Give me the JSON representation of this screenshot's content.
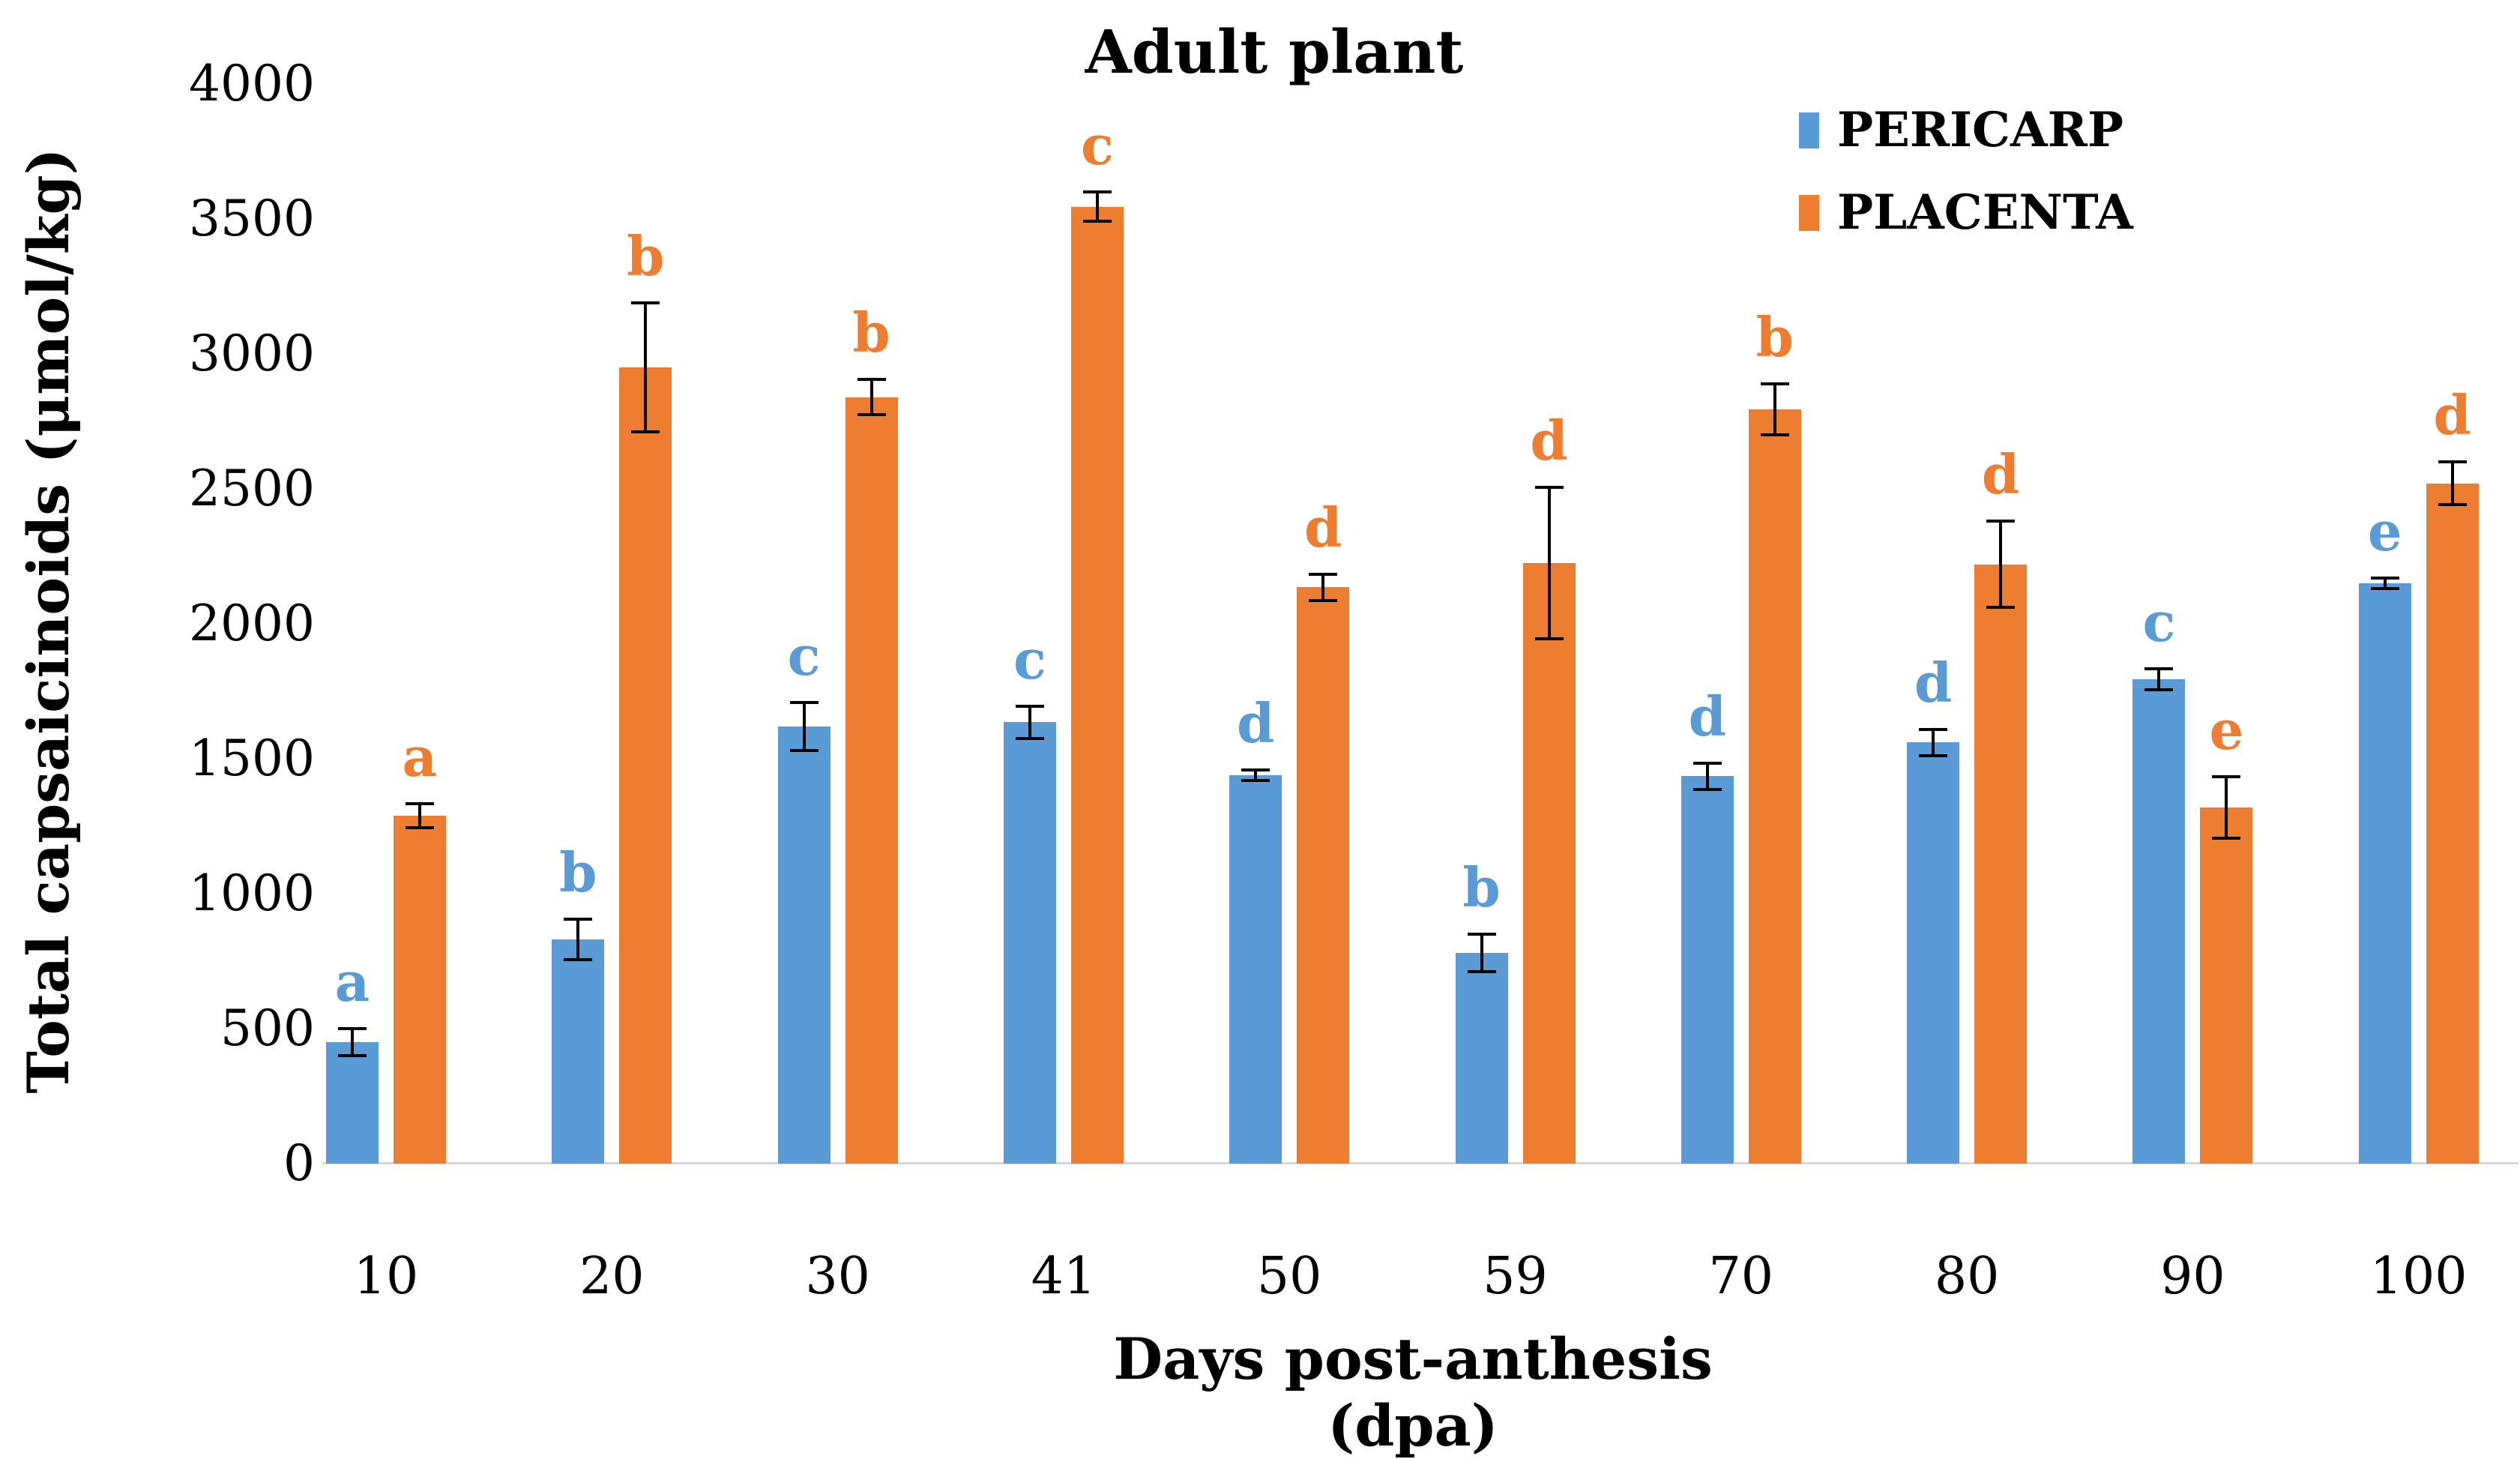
{
  "title": "Adult plant",
  "legend": [
    {
      "label": "PERICARP",
      "color": "#5B9BD5"
    },
    {
      "label": "PLACENTA",
      "color": "#ED7D31"
    }
  ],
  "y_axis": {
    "title": "Total capsaicinoids (μmol/kg)",
    "ticks": [
      "0",
      "500",
      "1000",
      "1500",
      "2000",
      "2500",
      "3000",
      "3500",
      "4000"
    ],
    "tick_values": [
      0,
      500,
      1000,
      1500,
      2000,
      2500,
      3000,
      3500,
      4000
    ],
    "min": 0,
    "max": 4000
  },
  "x_axis": {
    "title": "Days post-anthesis (dpa)",
    "categories": [
      "10",
      "20",
      "30",
      "41",
      "50",
      "59",
      "70",
      "80",
      "90",
      "100"
    ]
  },
  "chart_data": {
    "type": "bar",
    "title": "Adult plant",
    "xlabel": "Days post-anthesis (dpa)",
    "ylabel": "Total capsaicinoids (μmol/kg)",
    "ylim": [
      0,
      4000
    ],
    "grid": false,
    "legend_position": "top-right",
    "background": "#ffffff",
    "categories": [
      "10",
      "20",
      "30",
      "41",
      "50",
      "59",
      "70",
      "80",
      "90",
      "100"
    ],
    "series": [
      {
        "name": "PERICARP",
        "color": "#5B9BD5",
        "values": [
          450,
          830,
          1620,
          1635,
          1440,
          780,
          1435,
          1560,
          1795,
          2150
        ],
        "errors": [
          55,
          80,
          95,
          65,
          25,
          75,
          55,
          55,
          45,
          25
        ],
        "letters": [
          "a",
          "b",
          "c",
          "c",
          "d",
          "b",
          "d",
          "d",
          "c",
          "e"
        ]
      },
      {
        "name": "PLACENTA",
        "color": "#ED7D31",
        "values": [
          1290,
          2950,
          2840,
          3545,
          2135,
          2225,
          2795,
          2220,
          1320,
          2520
        ],
        "errors": [
          50,
          245,
          70,
          60,
          55,
          285,
          100,
          165,
          120,
          85
        ],
        "letters": [
          "a",
          "b",
          "b",
          "c",
          "d",
          "d",
          "b",
          "d",
          "e",
          "d"
        ]
      }
    ]
  }
}
